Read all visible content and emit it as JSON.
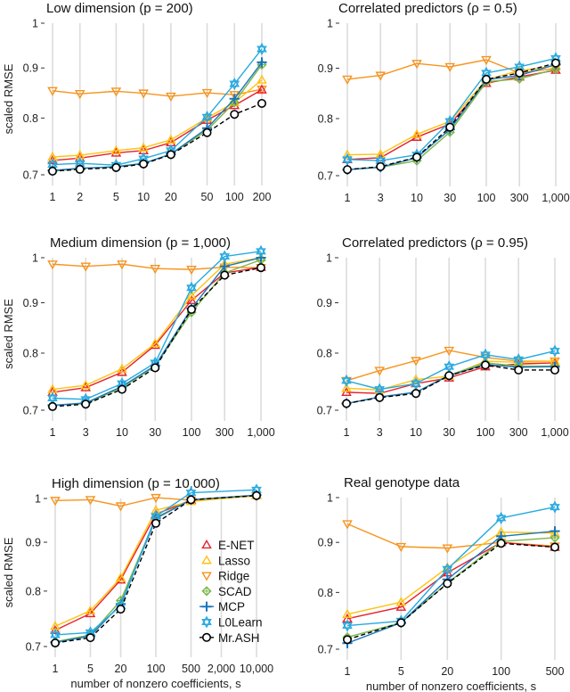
{
  "y_axis_label": "scaled RMSE",
  "x_axis_label": "number of nonzero coefficients, s",
  "legend": [
    {
      "name": "E-NET",
      "color": "#e8202a",
      "marker": "triangle-up"
    },
    {
      "name": "Lasso",
      "color": "#ffc20e",
      "marker": "triangle-up"
    },
    {
      "name": "Ridge",
      "color": "#f7941d",
      "marker": "triangle-down"
    },
    {
      "name": "SCAD",
      "color": "#7ab648",
      "marker": "diamond-plus"
    },
    {
      "name": "MCP",
      "color": "#1b75bb",
      "marker": "plus"
    },
    {
      "name": "L0Learn",
      "color": "#27aae1",
      "marker": "hexagram"
    },
    {
      "name": "Mr.ASH",
      "color": "#000000",
      "marker": "circle",
      "dashed": true
    }
  ],
  "chart_data": [
    {
      "type": "line",
      "title": "Low dimension (p = 200)",
      "xscale": "log",
      "yscale": "log",
      "ylabel": "scaled RMSE",
      "xlabel": "",
      "grid": "vertical",
      "y_ticks": [
        0.7,
        0.8,
        0.9,
        1
      ],
      "y_tick_labels": [
        "0.7",
        "0.8",
        "0.9",
        "1"
      ],
      "x_ticks": [
        1,
        2,
        5,
        10,
        20,
        50,
        100,
        200
      ],
      "x_tick_labels": [
        "1",
        "2",
        "5",
        "10",
        "20",
        "50",
        "100",
        "200"
      ],
      "x": [
        1,
        2,
        5,
        10,
        20,
        50,
        100,
        200
      ],
      "series": [
        {
          "name": "Ridge",
          "values": [
            0.853,
            0.847,
            0.852,
            0.848,
            0.842,
            0.849,
            0.845,
            0.856
          ]
        },
        {
          "name": "E-NET",
          "values": [
            0.724,
            0.728,
            0.737,
            0.741,
            0.755,
            0.796,
            0.824,
            0.855
          ]
        },
        {
          "name": "Lasso",
          "values": [
            0.73,
            0.733,
            0.741,
            0.746,
            0.76,
            0.8,
            0.83,
            0.875
          ]
        },
        {
          "name": "SCAD",
          "values": [
            0.706,
            0.71,
            0.714,
            0.719,
            0.735,
            0.777,
            0.83,
            0.907
          ]
        },
        {
          "name": "MCP",
          "values": [
            0.707,
            0.711,
            0.713,
            0.719,
            0.735,
            0.781,
            0.837,
            0.912
          ]
        },
        {
          "name": "L0Learn",
          "values": [
            0.717,
            0.719,
            0.716,
            0.727,
            0.741,
            0.802,
            0.867,
            0.941
          ]
        },
        {
          "name": "Mr.ASH",
          "values": [
            0.706,
            0.709,
            0.712,
            0.718,
            0.734,
            0.773,
            0.807,
            0.828
          ]
        }
      ]
    },
    {
      "type": "line",
      "title": "Correlated predictors (ρ = 0.5)",
      "xscale": "log",
      "yscale": "log",
      "grid": "vertical",
      "y_ticks": [
        0.7,
        0.8,
        0.9,
        1
      ],
      "y_tick_labels": [
        "0.7",
        "0.8",
        "0.9",
        "1"
      ],
      "x_ticks": [
        1,
        3,
        10,
        30,
        100,
        300,
        1000
      ],
      "x_tick_labels": [
        "1",
        "3",
        "10",
        "30",
        "100",
        "300",
        "1,000"
      ],
      "x": [
        1,
        3,
        10,
        30,
        100,
        300,
        1000
      ],
      "series": [
        {
          "name": "Ridge",
          "values": [
            0.877,
            0.885,
            0.91,
            0.903,
            0.918,
            0.89,
            0.9
          ]
        },
        {
          "name": "E-NET",
          "values": [
            0.727,
            0.73,
            0.766,
            0.79,
            0.869,
            0.882,
            0.896
          ]
        },
        {
          "name": "Lasso",
          "values": [
            0.735,
            0.736,
            0.771,
            0.795,
            0.876,
            0.895,
            0.905
          ]
        },
        {
          "name": "SCAD",
          "values": [
            0.71,
            0.714,
            0.725,
            0.775,
            0.872,
            0.878,
            0.898
          ]
        },
        {
          "name": "MCP",
          "values": [
            0.71,
            0.714,
            0.73,
            0.78,
            0.876,
            0.885,
            0.908
          ]
        },
        {
          "name": "L0Learn",
          "values": [
            0.727,
            0.725,
            0.735,
            0.795,
            0.89,
            0.903,
            0.921
          ]
        },
        {
          "name": "Mr.ASH",
          "values": [
            0.71,
            0.715,
            0.731,
            0.784,
            0.877,
            0.89,
            0.911
          ]
        }
      ]
    },
    {
      "type": "line",
      "title": "Medium dimension (p = 1,000)",
      "xscale": "log",
      "yscale": "log",
      "ylabel": "scaled RMSE",
      "grid": "vertical",
      "y_ticks": [
        0.7,
        0.8,
        0.9,
        1
      ],
      "y_tick_labels": [
        "0.7",
        "0.8",
        "0.9",
        "1"
      ],
      "x_ticks": [
        1,
        3,
        10,
        30,
        100,
        300,
        1000
      ],
      "x_tick_labels": [
        "1",
        "3",
        "10",
        "30",
        "100",
        "300",
        "1,000"
      ],
      "x": [
        1,
        3,
        10,
        30,
        100,
        300,
        1000
      ],
      "series": [
        {
          "name": "Ridge",
          "values": [
            0.985,
            0.98,
            0.985,
            0.975,
            0.973,
            0.978,
            0.977
          ]
        },
        {
          "name": "E-NET",
          "values": [
            0.73,
            0.738,
            0.765,
            0.815,
            0.905,
            0.965,
            0.978
          ]
        },
        {
          "name": "Lasso",
          "values": [
            0.735,
            0.742,
            0.771,
            0.818,
            0.915,
            0.985,
            1.0
          ]
        },
        {
          "name": "SCAD",
          "values": [
            0.708,
            0.711,
            0.738,
            0.776,
            0.88,
            0.965,
            0.995
          ]
        },
        {
          "name": "MCP",
          "values": [
            0.708,
            0.712,
            0.74,
            0.777,
            0.888,
            0.98,
            1.0
          ]
        },
        {
          "name": "L0Learn",
          "values": [
            0.72,
            0.718,
            0.745,
            0.782,
            0.932,
            1.003,
            1.015
          ]
        },
        {
          "name": "Mr.ASH",
          "values": [
            0.706,
            0.71,
            0.735,
            0.773,
            0.886,
            0.96,
            0.977
          ]
        }
      ]
    },
    {
      "type": "line",
      "title": "Correlated predictors (ρ = 0.95)",
      "xscale": "log",
      "yscale": "log",
      "grid": "vertical",
      "y_ticks": [
        0.7,
        0.8,
        0.9,
        1
      ],
      "y_tick_labels": [
        "0.7",
        "0.8",
        "0.9",
        "1"
      ],
      "x_ticks": [
        1,
        3,
        10,
        30,
        100,
        300,
        1000
      ],
      "x_tick_labels": [
        "1",
        "3",
        "10",
        "30",
        "100",
        "300",
        "1,000"
      ],
      "x": [
        1,
        3,
        10,
        30,
        100,
        300,
        1000
      ],
      "series": [
        {
          "name": "Ridge",
          "values": [
            0.75,
            0.768,
            0.786,
            0.805,
            0.792,
            0.785,
            0.785
          ]
        },
        {
          "name": "E-NET",
          "values": [
            0.73,
            0.728,
            0.745,
            0.755,
            0.775,
            0.78,
            0.782
          ]
        },
        {
          "name": "Lasso",
          "values": [
            0.737,
            0.734,
            0.752,
            0.758,
            0.785,
            0.783,
            0.785
          ]
        },
        {
          "name": "SCAD",
          "values": [
            0.711,
            0.722,
            0.73,
            0.76,
            0.782,
            0.776,
            0.776
          ]
        },
        {
          "name": "MCP",
          "values": [
            0.711,
            0.722,
            0.73,
            0.759,
            0.779,
            0.774,
            0.775
          ]
        },
        {
          "name": "L0Learn",
          "values": [
            0.75,
            0.735,
            0.745,
            0.775,
            0.797,
            0.788,
            0.804
          ]
        },
        {
          "name": "Mr.ASH",
          "values": [
            0.711,
            0.721,
            0.728,
            0.759,
            0.778,
            0.769,
            0.769
          ]
        }
      ]
    },
    {
      "type": "line",
      "title": "High dimension (p = 10,000)",
      "xscale": "log",
      "yscale": "log",
      "ylabel": "scaled RMSE",
      "xlabel": "number of nonzero coefficients, s",
      "grid": "vertical",
      "legend": "inside-right",
      "y_ticks": [
        0.7,
        0.8,
        0.9,
        1
      ],
      "y_tick_labels": [
        "0.7",
        "0.8",
        "0.9",
        "1"
      ],
      "x_ticks": [
        1,
        5,
        20,
        100,
        500,
        2000,
        10000
      ],
      "x_tick_labels": [
        "1",
        "5",
        "20",
        "100",
        "500",
        "2,000",
        "10,000"
      ],
      "x": [
        1,
        5,
        20,
        100,
        500,
        10000
      ],
      "series": [
        {
          "name": "Ridge",
          "values": [
            0.995,
            0.997,
            0.982,
            1.002,
            0.996,
            1.006
          ]
        },
        {
          "name": "E-NET",
          "values": [
            0.728,
            0.758,
            0.822,
            0.963,
            0.996,
            1.008
          ]
        },
        {
          "name": "Lasso",
          "values": [
            0.735,
            0.763,
            0.826,
            0.972,
            0.993,
            1.007
          ]
        },
        {
          "name": "SCAD",
          "values": [
            0.708,
            0.72,
            0.782,
            0.955,
            0.997,
            1.008
          ]
        },
        {
          "name": "MCP",
          "values": [
            0.707,
            0.718,
            0.775,
            0.953,
            0.997,
            1.008
          ]
        },
        {
          "name": "L0Learn",
          "values": [
            0.72,
            0.724,
            0.772,
            0.958,
            1.014,
            1.021
          ]
        },
        {
          "name": "Mr.ASH",
          "values": [
            0.706,
            0.715,
            0.766,
            0.942,
            0.997,
            1.007
          ]
        }
      ]
    },
    {
      "type": "line",
      "title": "Real genotype data",
      "xscale": "log",
      "yscale": "log",
      "xlabel": "number of nonzero coefficients, s",
      "grid": "vertical",
      "y_ticks": [
        0.7,
        0.8,
        0.9,
        1
      ],
      "y_tick_labels": [
        "0.7",
        "0.8",
        "0.9",
        "1"
      ],
      "x_ticks": [
        1,
        5,
        20,
        100,
        500
      ],
      "x_tick_labels": [
        "1",
        "5",
        "20",
        "100",
        "500"
      ],
      "x": [
        1,
        5,
        20,
        100,
        500
      ],
      "series": [
        {
          "name": "Ridge",
          "values": [
            0.94,
            0.891,
            0.888,
            0.9,
            0.892
          ]
        },
        {
          "name": "E-NET",
          "values": [
            0.752,
            0.773,
            0.838,
            0.9,
            0.89
          ]
        },
        {
          "name": "Lasso",
          "values": [
            0.76,
            0.782,
            0.848,
            0.922,
            0.92
          ]
        },
        {
          "name": "SCAD",
          "values": [
            0.72,
            0.745,
            0.818,
            0.902,
            0.91
          ]
        },
        {
          "name": "MCP",
          "values": [
            0.71,
            0.745,
            0.825,
            0.913,
            0.924
          ]
        },
        {
          "name": "L0Learn",
          "values": [
            0.74,
            0.748,
            0.845,
            0.953,
            0.978
          ]
        },
        {
          "name": "Mr.ASH",
          "values": [
            0.716,
            0.745,
            0.817,
            0.898,
            0.89
          ]
        }
      ]
    }
  ]
}
